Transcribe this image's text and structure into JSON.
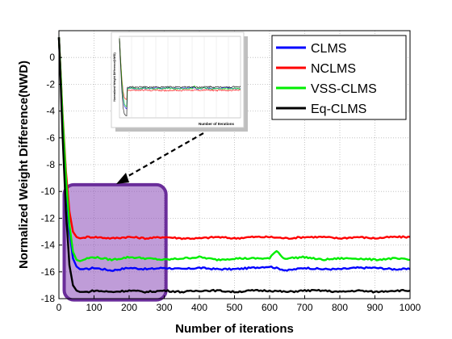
{
  "chart_data": {
    "type": "line",
    "title": "",
    "xlabel": "Number of iterations",
    "ylabel": "Normalized Weight Difference(NWD)",
    "xlim": [
      0,
      1000
    ],
    "ylim": [
      -18,
      2
    ],
    "xticks": [
      0,
      100,
      200,
      300,
      400,
      500,
      600,
      700,
      800,
      900,
      1000
    ],
    "yticks": [
      0,
      -2,
      -4,
      -6,
      -8,
      -10,
      -12,
      -14,
      -16,
      -18
    ],
    "xtick_labels": [
      "0",
      "100",
      "200",
      "300",
      "400",
      "500",
      "600",
      "700",
      "800",
      "900",
      "1000"
    ],
    "ytick_labels": [
      "0",
      "-2",
      "-4",
      "-6",
      "-8",
      "-10",
      "-12",
      "-14",
      "-16",
      "-18"
    ],
    "grid": true,
    "legend_position": "top-right",
    "series": [
      {
        "name": "CLMS",
        "color": "#0000ff",
        "x": [
          0,
          10,
          20,
          30,
          40,
          50,
          60,
          80,
          100,
          150,
          200,
          250,
          300,
          350,
          400,
          450,
          500,
          550,
          600,
          650,
          700,
          750,
          800,
          850,
          900,
          950,
          1000
        ],
        "y": [
          1.5,
          -4.5,
          -9.5,
          -13,
          -15,
          -15.6,
          -15.8,
          -15.8,
          -15.7,
          -15.9,
          -15.7,
          -15.8,
          -15.7,
          -15.8,
          -15.7,
          -15.8,
          -15.8,
          -15.7,
          -15.6,
          -15.9,
          -15.7,
          -15.8,
          -15.8,
          -15.7,
          -15.7,
          -15.8,
          -15.8
        ]
      },
      {
        "name": "NCLMS",
        "color": "#ff0000",
        "x": [
          0,
          10,
          20,
          30,
          40,
          50,
          60,
          80,
          100,
          150,
          200,
          250,
          300,
          350,
          400,
          450,
          500,
          550,
          600,
          650,
          700,
          750,
          800,
          850,
          900,
          950,
          1000
        ],
        "y": [
          1.5,
          -4.0,
          -8.5,
          -11.5,
          -13.0,
          -13.4,
          -13.5,
          -13.4,
          -13.4,
          -13.5,
          -13.4,
          -13.5,
          -13.4,
          -13.5,
          -13.5,
          -13.4,
          -13.5,
          -13.4,
          -13.4,
          -13.5,
          -13.4,
          -13.4,
          -13.5,
          -13.4,
          -13.5,
          -13.4,
          -13.4
        ]
      },
      {
        "name": "VSS-CLMS",
        "color": "#00ee00",
        "x": [
          0,
          10,
          20,
          30,
          40,
          50,
          60,
          80,
          100,
          150,
          200,
          250,
          300,
          350,
          400,
          450,
          500,
          550,
          600,
          620,
          640,
          700,
          750,
          800,
          850,
          900,
          950,
          1000
        ],
        "y": [
          1.5,
          -4.2,
          -9.0,
          -12.5,
          -14.5,
          -15.1,
          -15.2,
          -15.0,
          -14.9,
          -15.1,
          -14.9,
          -15.0,
          -15.1,
          -15.0,
          -14.9,
          -15.1,
          -15.0,
          -15.0,
          -15.0,
          -14.4,
          -15.0,
          -14.9,
          -15.1,
          -15.0,
          -15.0,
          -15.1,
          -15.0,
          -15.1
        ]
      },
      {
        "name": "Eq-CLMS",
        "color": "#000000",
        "x": [
          0,
          10,
          20,
          30,
          40,
          50,
          60,
          80,
          100,
          150,
          200,
          250,
          300,
          350,
          400,
          450,
          500,
          550,
          600,
          650,
          700,
          750,
          800,
          850,
          900,
          950,
          1000
        ],
        "y": [
          1.5,
          -5.5,
          -11.5,
          -15.5,
          -17.0,
          -17.4,
          -17.5,
          -17.5,
          -17.4,
          -17.5,
          -17.4,
          -17.5,
          -17.4,
          -17.5,
          -17.4,
          -17.4,
          -17.5,
          -17.4,
          -17.4,
          -17.5,
          -17.4,
          -17.4,
          -17.5,
          -17.4,
          -17.5,
          -17.4,
          -17.4
        ]
      }
    ],
    "annotations": {
      "highlight_region": {
        "x": [
          15,
          305
        ],
        "y": [
          -18.1,
          -9.5
        ],
        "fill": "#8a4bb8",
        "stroke": "#6a2d9a"
      },
      "inset": {
        "xlabel": "Number of Iterations",
        "ylabel": "Normalized Weight Difference(NWD)"
      }
    }
  }
}
